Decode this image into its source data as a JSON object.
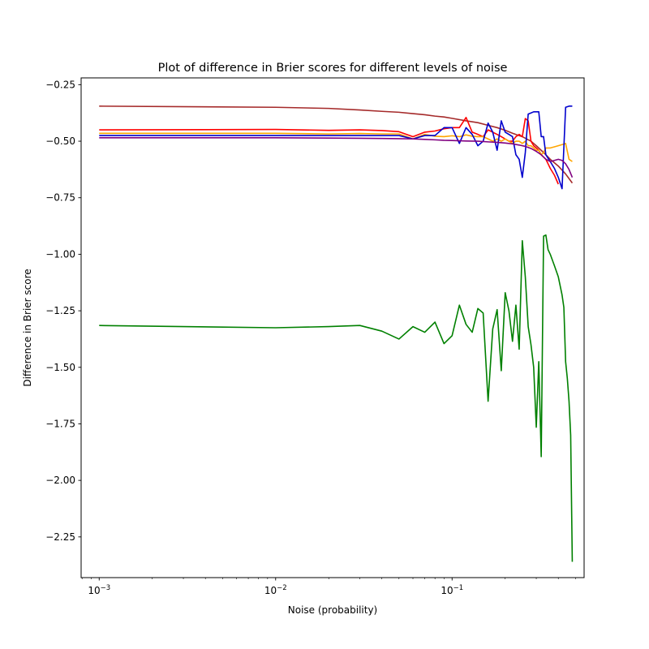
{
  "chart_data": {
    "type": "line",
    "title": "Plot of difference in Brier scores for different levels of noise",
    "xlabel": "Noise (probability)",
    "ylabel": "Difference in Brier score",
    "x_scale": "log",
    "xlim": [
      0.00079,
      0.56
    ],
    "ylim": [
      -2.43,
      -0.22
    ],
    "x_major_ticks": [
      0.001,
      0.01,
      0.1
    ],
    "x_tick_labels": [
      {
        "base": "10",
        "exp": "−3"
      },
      {
        "base": "10",
        "exp": "−2"
      },
      {
        "base": "10",
        "exp": "−1"
      }
    ],
    "y_ticks": [
      -0.25,
      -0.5,
      -0.75,
      -1.0,
      -1.25,
      -1.5,
      -1.75,
      -2.0,
      -2.25
    ],
    "y_tick_labels": [
      "−0.25",
      "−0.50",
      "−0.75",
      "−1.00",
      "−1.25",
      "−1.50",
      "−1.75",
      "−2.00",
      "−2.25"
    ],
    "grid": false,
    "series": [
      {
        "color": "#a52a2a",
        "x": [
          0.001,
          0.01,
          0.02,
          0.03,
          0.04,
          0.05,
          0.06,
          0.07,
          0.08,
          0.09,
          0.1,
          0.12,
          0.14,
          0.16,
          0.18,
          0.2,
          0.22,
          0.25,
          0.28,
          0.3,
          0.33,
          0.36,
          0.4,
          0.44,
          0.48
        ],
        "y": [
          -0.345,
          -0.35,
          -0.355,
          -0.362,
          -0.368,
          -0.372,
          -0.378,
          -0.383,
          -0.389,
          -0.393,
          -0.399,
          -0.41,
          -0.418,
          -0.43,
          -0.44,
          -0.452,
          -0.465,
          -0.48,
          -0.5,
          -0.52,
          -0.55,
          -0.58,
          -0.61,
          -0.645,
          -0.685
        ]
      },
      {
        "color": "#ff0000",
        "x": [
          0.001,
          0.01,
          0.02,
          0.03,
          0.04,
          0.05,
          0.06,
          0.07,
          0.08,
          0.09,
          0.1,
          0.11,
          0.12,
          0.13,
          0.14,
          0.15,
          0.16,
          0.17,
          0.18,
          0.19,
          0.2,
          0.21,
          0.22,
          0.23,
          0.24,
          0.25,
          0.26,
          0.27,
          0.28,
          0.29,
          0.3,
          0.31,
          0.32,
          0.33,
          0.34,
          0.35,
          0.36,
          0.38,
          0.4
        ],
        "y": [
          -0.45,
          -0.448,
          -0.452,
          -0.45,
          -0.453,
          -0.458,
          -0.48,
          -0.46,
          -0.455,
          -0.445,
          -0.44,
          -0.44,
          -0.395,
          -0.46,
          -0.47,
          -0.48,
          -0.45,
          -0.46,
          -0.47,
          -0.48,
          -0.49,
          -0.5,
          -0.5,
          -0.48,
          -0.47,
          -0.48,
          -0.4,
          -0.41,
          -0.5,
          -0.52,
          -0.53,
          -0.54,
          -0.56,
          -0.57,
          -0.58,
          -0.6,
          -0.62,
          -0.65,
          -0.69
        ]
      },
      {
        "color": "#ffa500",
        "x": [
          0.001,
          0.01,
          0.02,
          0.03,
          0.04,
          0.05,
          0.06,
          0.07,
          0.08,
          0.09,
          0.1,
          0.11,
          0.12,
          0.13,
          0.14,
          0.15,
          0.16,
          0.17,
          0.18,
          0.19,
          0.2,
          0.21,
          0.22,
          0.23,
          0.24,
          0.25,
          0.26,
          0.27,
          0.28,
          0.29,
          0.3,
          0.31,
          0.32,
          0.33,
          0.34,
          0.36,
          0.38,
          0.4,
          0.42,
          0.44,
          0.46,
          0.48
        ],
        "y": [
          -0.465,
          -0.465,
          -0.468,
          -0.466,
          -0.468,
          -0.468,
          -0.49,
          -0.47,
          -0.478,
          -0.48,
          -0.476,
          -0.48,
          -0.472,
          -0.478,
          -0.48,
          -0.48,
          -0.49,
          -0.5,
          -0.49,
          -0.5,
          -0.49,
          -0.5,
          -0.51,
          -0.5,
          -0.5,
          -0.51,
          -0.5,
          -0.52,
          -0.52,
          -0.53,
          -0.54,
          -0.54,
          -0.56,
          -0.55,
          -0.53,
          -0.53,
          -0.525,
          -0.52,
          -0.515,
          -0.51,
          -0.58,
          -0.59
        ]
      },
      {
        "color": "#0000cd",
        "x": [
          0.001,
          0.01,
          0.02,
          0.03,
          0.04,
          0.05,
          0.06,
          0.07,
          0.08,
          0.09,
          0.1,
          0.11,
          0.12,
          0.13,
          0.14,
          0.15,
          0.16,
          0.17,
          0.18,
          0.19,
          0.2,
          0.21,
          0.22,
          0.23,
          0.24,
          0.25,
          0.26,
          0.27,
          0.28,
          0.29,
          0.3,
          0.31,
          0.32,
          0.33,
          0.34,
          0.36,
          0.38,
          0.4,
          0.42,
          0.44,
          0.46,
          0.48
        ],
        "y": [
          -0.475,
          -0.475,
          -0.475,
          -0.475,
          -0.475,
          -0.475,
          -0.49,
          -0.475,
          -0.475,
          -0.44,
          -0.44,
          -0.51,
          -0.44,
          -0.47,
          -0.52,
          -0.5,
          -0.42,
          -0.46,
          -0.54,
          -0.41,
          -0.46,
          -0.47,
          -0.48,
          -0.56,
          -0.58,
          -0.66,
          -0.55,
          -0.38,
          -0.375,
          -0.37,
          -0.37,
          -0.37,
          -0.48,
          -0.48,
          -0.56,
          -0.59,
          -0.62,
          -0.66,
          -0.71,
          -0.35,
          -0.345,
          -0.345
        ]
      },
      {
        "color": "#800080",
        "x": [
          0.001,
          0.01,
          0.02,
          0.03,
          0.04,
          0.05,
          0.06,
          0.07,
          0.08,
          0.09,
          0.1,
          0.12,
          0.14,
          0.16,
          0.18,
          0.2,
          0.22,
          0.24,
          0.26,
          0.28,
          0.3,
          0.32,
          0.34,
          0.36,
          0.38,
          0.4,
          0.42,
          0.44,
          0.46,
          0.48
        ],
        "y": [
          -0.485,
          -0.485,
          -0.486,
          -0.487,
          -0.488,
          -0.489,
          -0.49,
          -0.492,
          -0.494,
          -0.496,
          -0.497,
          -0.499,
          -0.5,
          -0.503,
          -0.505,
          -0.508,
          -0.512,
          -0.517,
          -0.523,
          -0.532,
          -0.545,
          -0.56,
          -0.58,
          -0.59,
          -0.585,
          -0.58,
          -0.585,
          -0.6,
          -0.625,
          -0.66
        ]
      },
      {
        "color": "#008000",
        "x": [
          0.001,
          0.01,
          0.02,
          0.03,
          0.04,
          0.05,
          0.06,
          0.07,
          0.08,
          0.09,
          0.1,
          0.11,
          0.12,
          0.13,
          0.14,
          0.15,
          0.16,
          0.17,
          0.18,
          0.19,
          0.2,
          0.21,
          0.22,
          0.23,
          0.24,
          0.25,
          0.26,
          0.27,
          0.28,
          0.29,
          0.3,
          0.31,
          0.32,
          0.33,
          0.34,
          0.35,
          0.36,
          0.38,
          0.4,
          0.42,
          0.43,
          0.44,
          0.45,
          0.46,
          0.47,
          0.48
        ],
        "y": [
          -1.315,
          -1.325,
          -1.32,
          -1.315,
          -1.34,
          -1.375,
          -1.32,
          -1.345,
          -1.3,
          -1.395,
          -1.36,
          -1.225,
          -1.31,
          -1.345,
          -1.24,
          -1.26,
          -1.65,
          -1.33,
          -1.245,
          -1.515,
          -1.17,
          -1.25,
          -1.385,
          -1.225,
          -1.42,
          -0.94,
          -1.1,
          -1.32,
          -1.4,
          -1.5,
          -1.765,
          -1.475,
          -1.895,
          -0.92,
          -0.915,
          -0.98,
          -1.0,
          -1.05,
          -1.1,
          -1.18,
          -1.235,
          -1.475,
          -1.55,
          -1.65,
          -1.8,
          -2.36
        ]
      }
    ]
  }
}
